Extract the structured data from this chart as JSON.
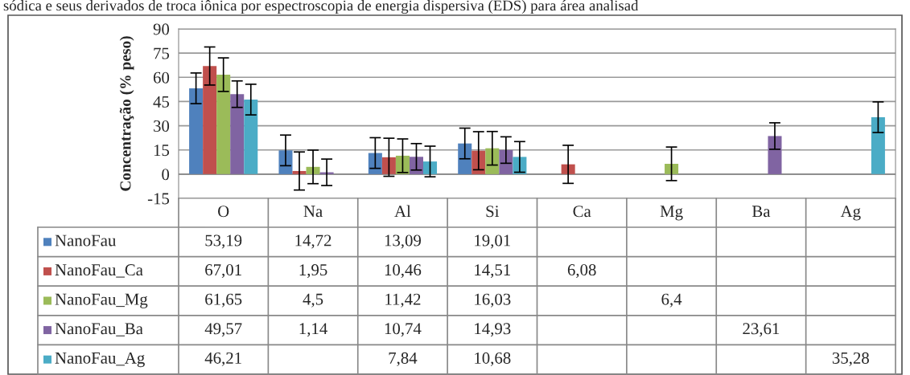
{
  "chart_data": {
    "type": "bar",
    "title": "sódica e seus derivados de troca iônica por espectroscopia de energia dispersiva (EDS) para área analisad",
    "ylabel": "Concentração (% peso)",
    "categories": [
      "O",
      "Na",
      "Al",
      "Si",
      "Ca",
      "Mg",
      "Ba",
      "Ag"
    ],
    "series": [
      {
        "name": "NanoFau",
        "color": "#4f81bd",
        "values": [
          53.19,
          14.72,
          13.09,
          19.01,
          null,
          null,
          null,
          null
        ],
        "errors": [
          9.5,
          9.5,
          9.5,
          9.5,
          null,
          null,
          null,
          null
        ],
        "value_labels": [
          "53,19",
          "14,72",
          "13,09",
          "19,01",
          null,
          null,
          null,
          null
        ]
      },
      {
        "name": "NanoFau_Ca",
        "color": "#c0504d",
        "values": [
          67.01,
          1.95,
          10.46,
          14.51,
          6.08,
          null,
          null,
          null
        ],
        "errors": [
          11.8,
          11.8,
          11.8,
          11.8,
          11.8,
          null,
          null,
          null
        ],
        "value_labels": [
          "67,01",
          "1,95",
          "10,46",
          "14,51",
          "6,08",
          null,
          null,
          null
        ]
      },
      {
        "name": "NanoFau_Mg",
        "color": "#9bbb59",
        "values": [
          61.65,
          4.5,
          11.42,
          16.03,
          null,
          6.4,
          null,
          null
        ],
        "errors": [
          10.4,
          10.4,
          10.4,
          10.4,
          null,
          10.4,
          null,
          null
        ],
        "value_labels": [
          "61,65",
          "4,5",
          "11,42",
          "16,03",
          null,
          "6,4",
          null,
          null
        ]
      },
      {
        "name": "NanoFau_Ba",
        "color": "#8064a2",
        "values": [
          49.57,
          1.14,
          10.74,
          14.93,
          null,
          null,
          23.61,
          null
        ],
        "errors": [
          8.2,
          8.2,
          8.2,
          8.2,
          null,
          null,
          8.2,
          null
        ],
        "value_labels": [
          "49,57",
          "1,14",
          "10,74",
          "14,93",
          null,
          null,
          "23,61",
          null
        ]
      },
      {
        "name": "NanoFau_Ag",
        "color": "#4bacc6",
        "values": [
          46.21,
          null,
          7.84,
          10.68,
          null,
          null,
          null,
          35.28
        ],
        "errors": [
          9.5,
          null,
          9.5,
          9.5,
          null,
          null,
          null,
          9.5
        ],
        "value_labels": [
          "46,21",
          null,
          "7,84",
          "10,68",
          null,
          null,
          null,
          "35,28"
        ]
      }
    ],
    "ylim": [
      -15,
      90
    ],
    "yticks": [
      -15,
      0,
      15,
      30,
      45,
      60,
      75,
      90
    ],
    "grid": "y",
    "legend": "bottom"
  }
}
